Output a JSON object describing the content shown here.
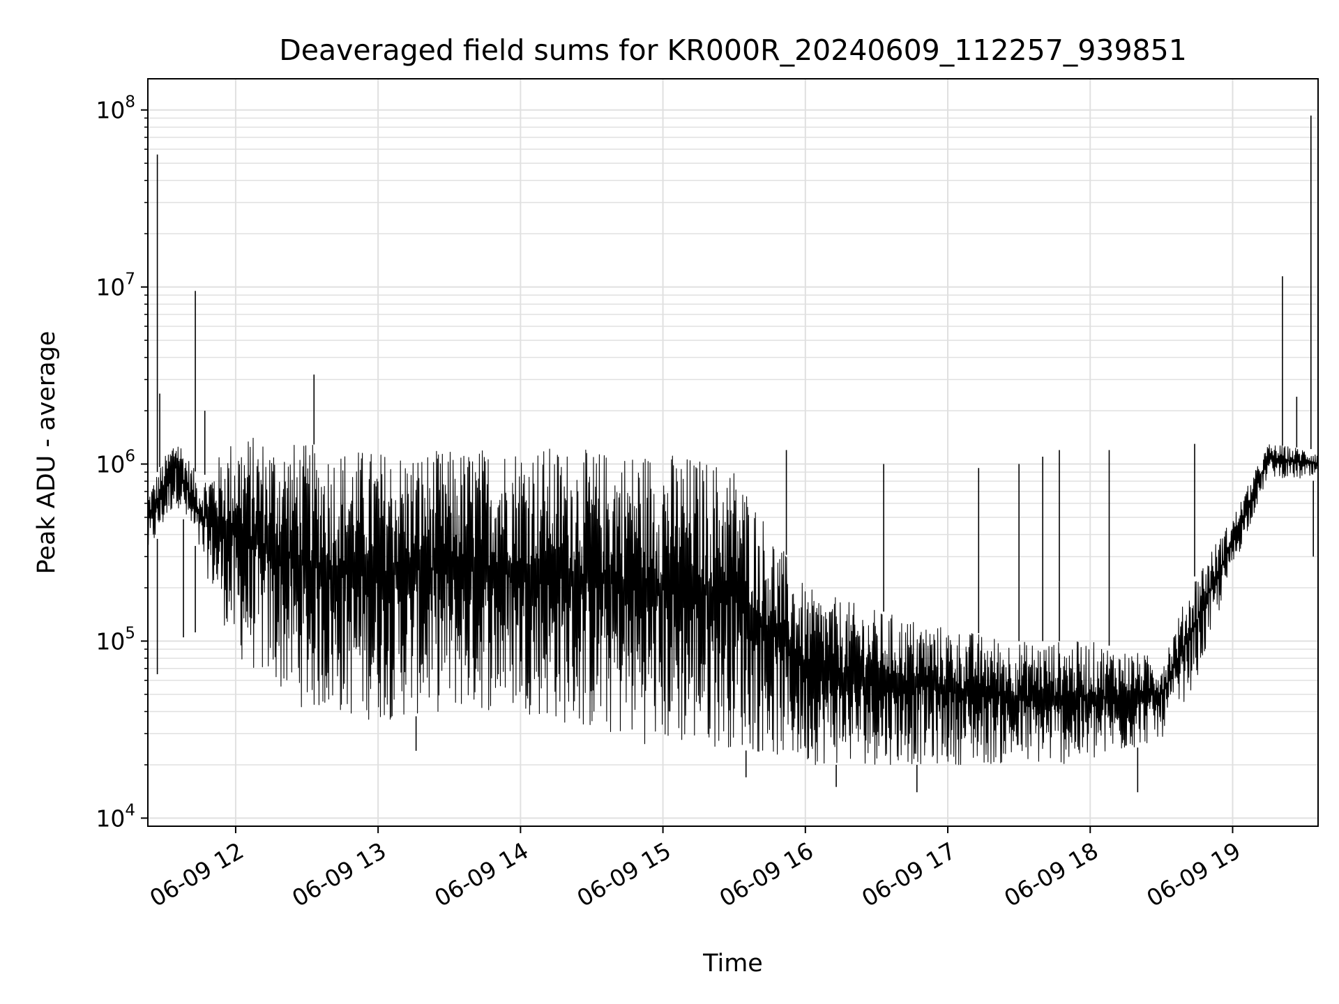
{
  "chart_data": {
    "type": "line",
    "title": "Deaveraged field sums for KR000R_20240609_112257_939851",
    "xlabel": "Time",
    "ylabel": "Peak ADU - average",
    "y_scale": "log",
    "ylim": [
      9000,
      150000000
    ],
    "xlim": [
      "2024-06-09 11:23",
      "2024-06-09 19:36"
    ],
    "grid": true,
    "line_color": "#000000",
    "grid_color": "#e0e0e0",
    "x_ticks": [
      {
        "time": "2024-06-09 12:00",
        "label": "06-09 12"
      },
      {
        "time": "2024-06-09 13:00",
        "label": "06-09 13"
      },
      {
        "time": "2024-06-09 14:00",
        "label": "06-09 14"
      },
      {
        "time": "2024-06-09 15:00",
        "label": "06-09 15"
      },
      {
        "time": "2024-06-09 16:00",
        "label": "06-09 16"
      },
      {
        "time": "2024-06-09 17:00",
        "label": "06-09 17"
      },
      {
        "time": "2024-06-09 18:00",
        "label": "06-09 18"
      },
      {
        "time": "2024-06-09 19:00",
        "label": "06-09 19"
      }
    ],
    "y_ticks": [
      {
        "value": 10000,
        "base": "10",
        "exp": "4"
      },
      {
        "value": 100000,
        "base": "10",
        "exp": "5"
      },
      {
        "value": 1000000,
        "base": "10",
        "exp": "6"
      },
      {
        "value": 10000000,
        "base": "10",
        "exp": "7"
      },
      {
        "value": 100000000,
        "base": "10",
        "exp": "8"
      }
    ],
    "envelope": [
      {
        "time": "2024-06-09 11:23",
        "low": 300000,
        "high": 700000
      },
      {
        "time": "2024-06-09 11:35",
        "low": 600000,
        "high": 1500000
      },
      {
        "time": "2024-06-09 11:45",
        "low": 300000,
        "high": 800000
      },
      {
        "time": "2024-06-09 12:00",
        "low": 80000,
        "high": 1500000
      },
      {
        "time": "2024-06-09 12:30",
        "low": 40000,
        "high": 1300000
      },
      {
        "time": "2024-06-09 13:00",
        "low": 35000,
        "high": 1200000
      },
      {
        "time": "2024-06-09 13:30",
        "low": 40000,
        "high": 1200000
      },
      {
        "time": "2024-06-09 14:00",
        "low": 40000,
        "high": 1300000
      },
      {
        "time": "2024-06-09 14:30",
        "low": 30000,
        "high": 1200000
      },
      {
        "time": "2024-06-09 15:00",
        "low": 25000,
        "high": 1200000
      },
      {
        "time": "2024-06-09 15:30",
        "low": 25000,
        "high": 1000000
      },
      {
        "time": "2024-06-09 16:00",
        "low": 20000,
        "high": 200000
      },
      {
        "time": "2024-06-09 16:30",
        "low": 20000,
        "high": 150000
      },
      {
        "time": "2024-06-09 17:00",
        "low": 20000,
        "high": 120000
      },
      {
        "time": "2024-06-09 17:30",
        "low": 20000,
        "high": 100000
      },
      {
        "time": "2024-06-09 18:00",
        "low": 20000,
        "high": 100000
      },
      {
        "time": "2024-06-09 18:30",
        "low": 28000,
        "high": 80000
      },
      {
        "time": "2024-06-09 18:45",
        "low": 60000,
        "high": 250000
      },
      {
        "time": "2024-06-09 19:00",
        "low": 250000,
        "high": 500000
      },
      {
        "time": "2024-06-09 19:15",
        "low": 850000,
        "high": 1300000
      },
      {
        "time": "2024-06-09 19:36",
        "low": 800000,
        "high": 1200000
      }
    ],
    "spikes": [
      {
        "time": "2024-06-09 11:27",
        "value": 56000000
      },
      {
        "time": "2024-06-09 11:27",
        "value": 65000
      },
      {
        "time": "2024-06-09 11:28",
        "value": 2500000
      },
      {
        "time": "2024-06-09 11:38",
        "value": 105000
      },
      {
        "time": "2024-06-09 11:43",
        "value": 9500000
      },
      {
        "time": "2024-06-09 11:43",
        "value": 112000
      },
      {
        "time": "2024-06-09 11:47",
        "value": 2000000
      },
      {
        "time": "2024-06-09 12:33",
        "value": 3200000
      },
      {
        "time": "2024-06-09 13:16",
        "value": 24000
      },
      {
        "time": "2024-06-09 15:35",
        "value": 17000
      },
      {
        "time": "2024-06-09 15:52",
        "value": 1200000
      },
      {
        "time": "2024-06-09 16:13",
        "value": 15000
      },
      {
        "time": "2024-06-09 16:33",
        "value": 1000000
      },
      {
        "time": "2024-06-09 16:47",
        "value": 14000
      },
      {
        "time": "2024-06-09 17:13",
        "value": 950000
      },
      {
        "time": "2024-06-09 17:30",
        "value": 1000000
      },
      {
        "time": "2024-06-09 17:40",
        "value": 1100000
      },
      {
        "time": "2024-06-09 17:47",
        "value": 1200000
      },
      {
        "time": "2024-06-09 18:08",
        "value": 1200000
      },
      {
        "time": "2024-06-09 18:20",
        "value": 14000
      },
      {
        "time": "2024-06-09 18:44",
        "value": 1300000
      },
      {
        "time": "2024-06-09 19:21",
        "value": 11500000
      },
      {
        "time": "2024-06-09 19:27",
        "value": 2400000
      },
      {
        "time": "2024-06-09 19:33",
        "value": 93000000
      },
      {
        "time": "2024-06-09 19:34",
        "value": 300000
      }
    ]
  }
}
